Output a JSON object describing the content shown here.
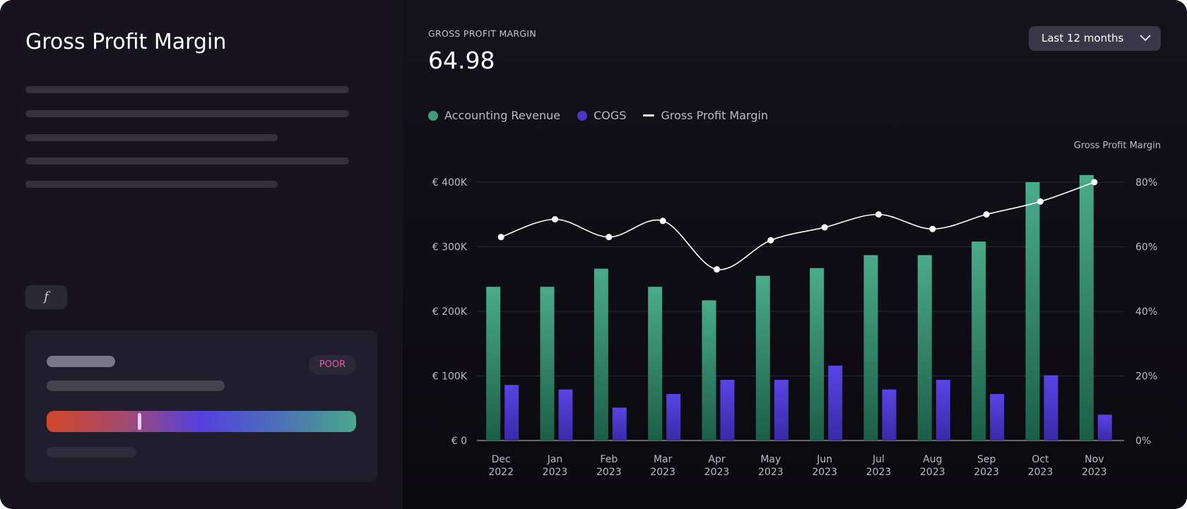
{
  "left": {
    "title": "Gross Profit Margin",
    "function_button": "f",
    "card": {
      "badge": "POOR",
      "score_fraction": 0.3,
      "badge_color": "#e05aa8"
    }
  },
  "header": {
    "kpi_title": "GROSS PROFIT MARGIN",
    "kpi_value": "64.98",
    "range_select": "Last 12 months"
  },
  "chart_data": {
    "type": "bar",
    "categories": [
      "Dec 2022",
      "Jan 2023",
      "Feb 2023",
      "Mar 2023",
      "Apr 2023",
      "May 2023",
      "Jun 2023",
      "Jul 2023",
      "Aug 2023",
      "Sep 2023",
      "Oct 2023",
      "Nov 2023"
    ],
    "category_lines": [
      [
        "Dec",
        "2022"
      ],
      [
        "Jan",
        "2023"
      ],
      [
        "Feb",
        "2023"
      ],
      [
        "Mar",
        "2023"
      ],
      [
        "Apr",
        "2023"
      ],
      [
        "May",
        "2023"
      ],
      [
        "Jun",
        "2023"
      ],
      [
        "Jul",
        "2023"
      ],
      [
        "Aug",
        "2023"
      ],
      [
        "Sep",
        "2023"
      ],
      [
        "Oct",
        "2023"
      ],
      [
        "Nov",
        "2023"
      ]
    ],
    "series": [
      {
        "name": "Accounting Revenue",
        "type": "bar",
        "axis": "left",
        "color": "#4aab8a",
        "values": [
          238000,
          238000,
          266000,
          238000,
          217000,
          255000,
          267000,
          287000,
          287000,
          308000,
          400000,
          411000
        ]
      },
      {
        "name": "COGS",
        "type": "bar",
        "axis": "left",
        "color": "#5540e0",
        "values": [
          86000,
          79000,
          51000,
          72000,
          94000,
          94000,
          116000,
          79000,
          94000,
          72000,
          101000,
          40000
        ]
      },
      {
        "name": "Gross Profit Margin",
        "type": "line",
        "axis": "right",
        "color": "#ffffff",
        "values": [
          63,
          68.5,
          63,
          68,
          53,
          62,
          66,
          70,
          65.5,
          70,
          74,
          80
        ]
      }
    ],
    "y_left": {
      "ylim": [
        0,
        400000
      ],
      "ticks": [
        "€ 0",
        "€ 100K",
        "€ 200K",
        "€ 300K",
        "€ 400K"
      ]
    },
    "y_right": {
      "label": "Gross Profit Margin",
      "ylim": [
        0,
        80
      ],
      "ticks": [
        "0%",
        "20%",
        "40%",
        "60%",
        "80%"
      ]
    },
    "grid": true,
    "legend": "top-left"
  }
}
